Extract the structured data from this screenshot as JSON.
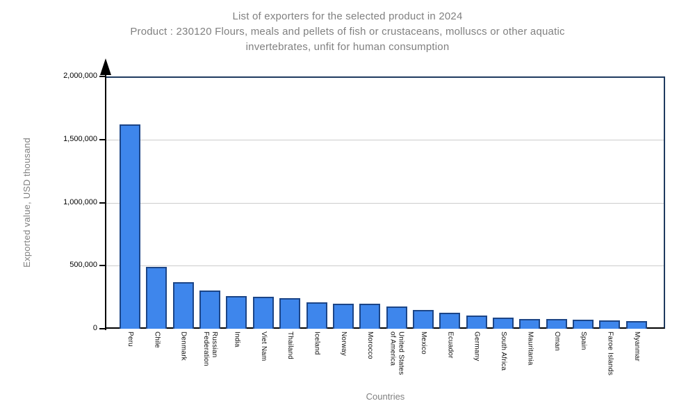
{
  "title_display_lines": [
    "List of exporters for the selected product in 2024",
    "Product : 230120 Flours, meals and pellets of fish or crustaceans, molluscs or other aquatic",
    "invertebrates, unfit for human consumption"
  ],
  "chart_data": {
    "type": "bar",
    "title": "List of exporters for the selected product in 2024",
    "subtitle": "Product : 230120 Flours, meals and pellets of fish or crustaceans, molluscs or other aquatic invertebrates, unfit for human consumption",
    "xlabel": "Countries",
    "ylabel": "Exported value, USD thousand",
    "ylim": [
      0,
      2000000
    ],
    "yticks": [
      0,
      500000,
      1000000,
      1500000,
      2000000
    ],
    "grid": true,
    "legend": false,
    "categories": [
      "Peru",
      "Chile",
      "Denmark",
      "Russian Federation",
      "India",
      "Viet Nam",
      "Thailand",
      "Iceland",
      "Norway",
      "Morocco",
      "United States of America",
      "Mexico",
      "Ecuador",
      "Germany",
      "South Africa",
      "Mauritania",
      "Oman",
      "Spain",
      "Faroe Islands",
      "Myanmar"
    ],
    "label_lines": [
      [
        "Peru"
      ],
      [
        "Chile"
      ],
      [
        "Denmark"
      ],
      [
        "Russian",
        "Federation"
      ],
      [
        "India"
      ],
      [
        "Viet Nam"
      ],
      [
        "Thailand"
      ],
      [
        "Iceland"
      ],
      [
        "Norway"
      ],
      [
        "Morocco"
      ],
      [
        "United States",
        "of America"
      ],
      [
        "Mexico"
      ],
      [
        "Ecuador"
      ],
      [
        "Germany"
      ],
      [
        "South Africa"
      ],
      [
        "Mauritania"
      ],
      [
        "Oman"
      ],
      [
        "Spain"
      ],
      [
        "Faroe Islands"
      ],
      [
        "Myanmar"
      ]
    ],
    "values": [
      1620000,
      490000,
      370000,
      305000,
      258000,
      256000,
      242000,
      207000,
      201000,
      196000,
      175000,
      150000,
      125000,
      104000,
      88000,
      76000,
      75000,
      72000,
      67000,
      60000
    ],
    "colors": {
      "bar_fill": "#3E86EC",
      "bar_border": "#1C4587",
      "gridline": "#CCCCCC",
      "frame": "#1E3A5F",
      "axis": "#000000",
      "muted_text": "#808080",
      "tick_text": "#000000"
    }
  }
}
